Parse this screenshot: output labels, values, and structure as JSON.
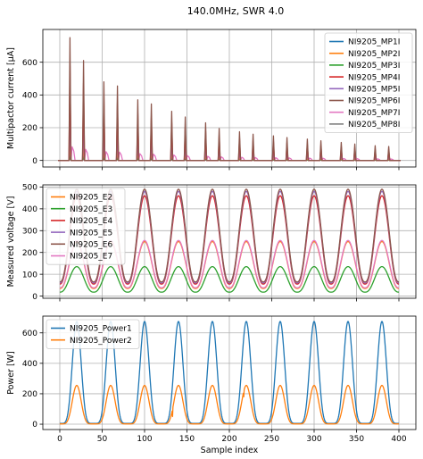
{
  "figure": {
    "title": "140.0MHz, SWR 4.0"
  },
  "chart_data": [
    {
      "type": "line",
      "ylabel": "Multipactor current [μA]",
      "xlabel": "",
      "xlim": [
        -20,
        420
      ],
      "ylim": [
        -40,
        800
      ],
      "xticks": [
        0,
        50,
        100,
        150,
        200,
        250,
        300,
        350,
        400
      ],
      "yticks": [
        0,
        200,
        400,
        600
      ],
      "yticklabels": [
        "0",
        "200",
        "400",
        "600"
      ],
      "grid": true,
      "legend": "top-right",
      "spikes": {
        "x": [
          12,
          28,
          52,
          68,
          92,
          108,
          132,
          148,
          172,
          188,
          212,
          228,
          252,
          268,
          292,
          308,
          332,
          348,
          372,
          388
        ],
        "MP6I": [
          750,
          610,
          480,
          455,
          370,
          345,
          300,
          265,
          230,
          195,
          175,
          160,
          150,
          140,
          130,
          120,
          110,
          100,
          90,
          85
        ]
      },
      "series": [
        {
          "name": "NI9205_MP1I",
          "color": "#1f77b4",
          "peak": 100
        },
        {
          "name": "NI9205_MP2I",
          "color": "#ff7f0e",
          "peak": 90
        },
        {
          "name": "NI9205_MP3I",
          "color": "#2ca02c",
          "peak": 20
        },
        {
          "name": "NI9205_MP4I",
          "color": "#d62728",
          "peak": 580
        },
        {
          "name": "NI9205_MP5I",
          "color": "#9467bd",
          "peak": 270
        },
        {
          "name": "NI9205_MP6I",
          "color": "#8c564b",
          "peak": 750
        },
        {
          "name": "NI9205_MP7I",
          "color": "#e377c2",
          "peak": 260
        },
        {
          "name": "NI9205_MP8I",
          "color": "#7f7f7f",
          "peak": 30
        }
      ]
    },
    {
      "type": "line",
      "ylabel": "Measured voltage [V]",
      "xlabel": "",
      "xlim": [
        -20,
        420
      ],
      "ylim": [
        -10,
        510
      ],
      "xticks": [
        0,
        50,
        100,
        150,
        200,
        250,
        300,
        350,
        400
      ],
      "yticks": [
        0,
        100,
        200,
        300,
        400,
        500
      ],
      "yticklabels": [
        "0",
        "100",
        "200",
        "300",
        "400",
        "500"
      ],
      "grid": true,
      "legend": "top-left",
      "period": 40,
      "peak_x": 20,
      "series": [
        {
          "name": "NI9205_E2",
          "color": "#ff7f0e",
          "min": 35,
          "max": 250
        },
        {
          "name": "NI9205_E3",
          "color": "#2ca02c",
          "min": 18,
          "max": 135
        },
        {
          "name": "NI9205_E4",
          "color": "#d62728",
          "min": 55,
          "max": 460
        },
        {
          "name": "NI9205_E5",
          "color": "#9467bd",
          "min": 60,
          "max": 480
        },
        {
          "name": "NI9205_E6",
          "color": "#8c564b",
          "min": 65,
          "max": 490
        },
        {
          "name": "NI9205_E7",
          "color": "#e377c2",
          "min": 38,
          "max": 255
        }
      ]
    },
    {
      "type": "line",
      "ylabel": "Power [W]",
      "xlabel": "Sample index",
      "xlim": [
        -20,
        420
      ],
      "ylim": [
        -35,
        710
      ],
      "xticks": [
        0,
        50,
        100,
        150,
        200,
        250,
        300,
        350,
        400
      ],
      "xticklabels": [
        "0",
        "50",
        "100",
        "150",
        "200",
        "250",
        "300",
        "350",
        "400"
      ],
      "yticks": [
        0,
        200,
        400,
        600
      ],
      "yticklabels": [
        "0",
        "200",
        "400",
        "600"
      ],
      "grid": true,
      "legend": "top-left",
      "period": 40,
      "peak_x": 20,
      "series": [
        {
          "name": "NI9205_Power1",
          "color": "#1f77b4",
          "min": 5,
          "max": 675
        },
        {
          "name": "NI9205_Power2",
          "color": "#ff7f0e",
          "min": 2,
          "max": 255
        }
      ],
      "glitches": [
        {
          "series": "NI9205_Power2",
          "x": 133,
          "y": 50
        },
        {
          "series": "NI9205_Power2",
          "x": 217,
          "y": 180
        }
      ]
    }
  ]
}
